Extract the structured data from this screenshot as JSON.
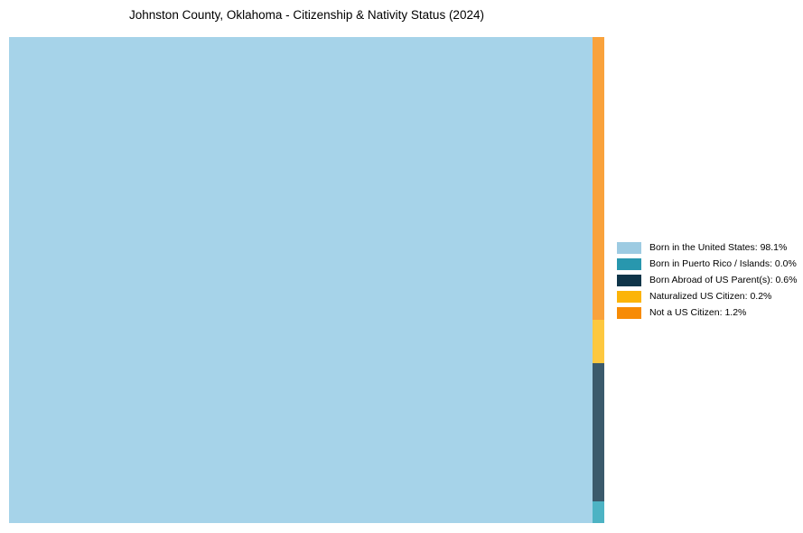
{
  "page": {
    "background": "#ffffff"
  },
  "header": {
    "title": "Johnston County, Oklahoma - Citizenship & Nativity Status (2024)"
  },
  "chart_data": {
    "type": "treemap",
    "title": "Johnston County, Oklahoma - Citizenship & Nativity Status (2024)",
    "unit": "percent",
    "categories": [
      "Born in the United States",
      "Born in Puerto Rico / Islands",
      "Born Abroad of US Parent(s)",
      "Naturalized US Citizen",
      "Not a US Citizen"
    ],
    "values": [
      98.1,
      0.0,
      0.6,
      0.2,
      1.2
    ],
    "legend_position": "right-center",
    "legend_entries": [
      "Born in the United States: 98.1%",
      "Born in Puerto Rico / Islands: 0.0%",
      "Born Abroad of US Parent(s): 0.6%",
      "Naturalized US Citizen: 0.2%",
      "Not a US Citizen: 1.2%"
    ],
    "layout_hint": "One large rectangle fills the plot area; remaining categories form a narrow vertical strip on the right edge, ordered top to bottom: Not a US Citizen, Naturalized US Citizen, Born Abroad of US Parent(s), Born in Puerto Rico / Islands"
  },
  "series": [
    {
      "name": "Born in the United States",
      "value": 98.1,
      "legend_label": "Born in the United States: 98.1%",
      "legend_color": "#9dcbe2",
      "fill_color": "#a6d3e9"
    },
    {
      "name": "Born in Puerto Rico / Islands",
      "value": 0.0,
      "legend_label": "Born in Puerto Rico / Islands: 0.0%",
      "legend_color": "#2897ae",
      "fill_color": "#4db3c4"
    },
    {
      "name": "Born Abroad of US Parent(s)",
      "value": 0.6,
      "legend_label": "Born Abroad of US Parent(s): 0.6%",
      "legend_color": "#0f3549",
      "fill_color": "#3b5a6c"
    },
    {
      "name": "Naturalized US Citizen",
      "value": 0.2,
      "legend_label": "Naturalized US Citizen: 0.2%",
      "legend_color": "#fcb408",
      "fill_color": "#fdc840"
    },
    {
      "name": "Not a US Citizen",
      "value": 1.2,
      "legend_label": "Not a US Citizen: 1.2%",
      "legend_color": "#f78b05",
      "fill_color": "#f9a23c"
    }
  ]
}
